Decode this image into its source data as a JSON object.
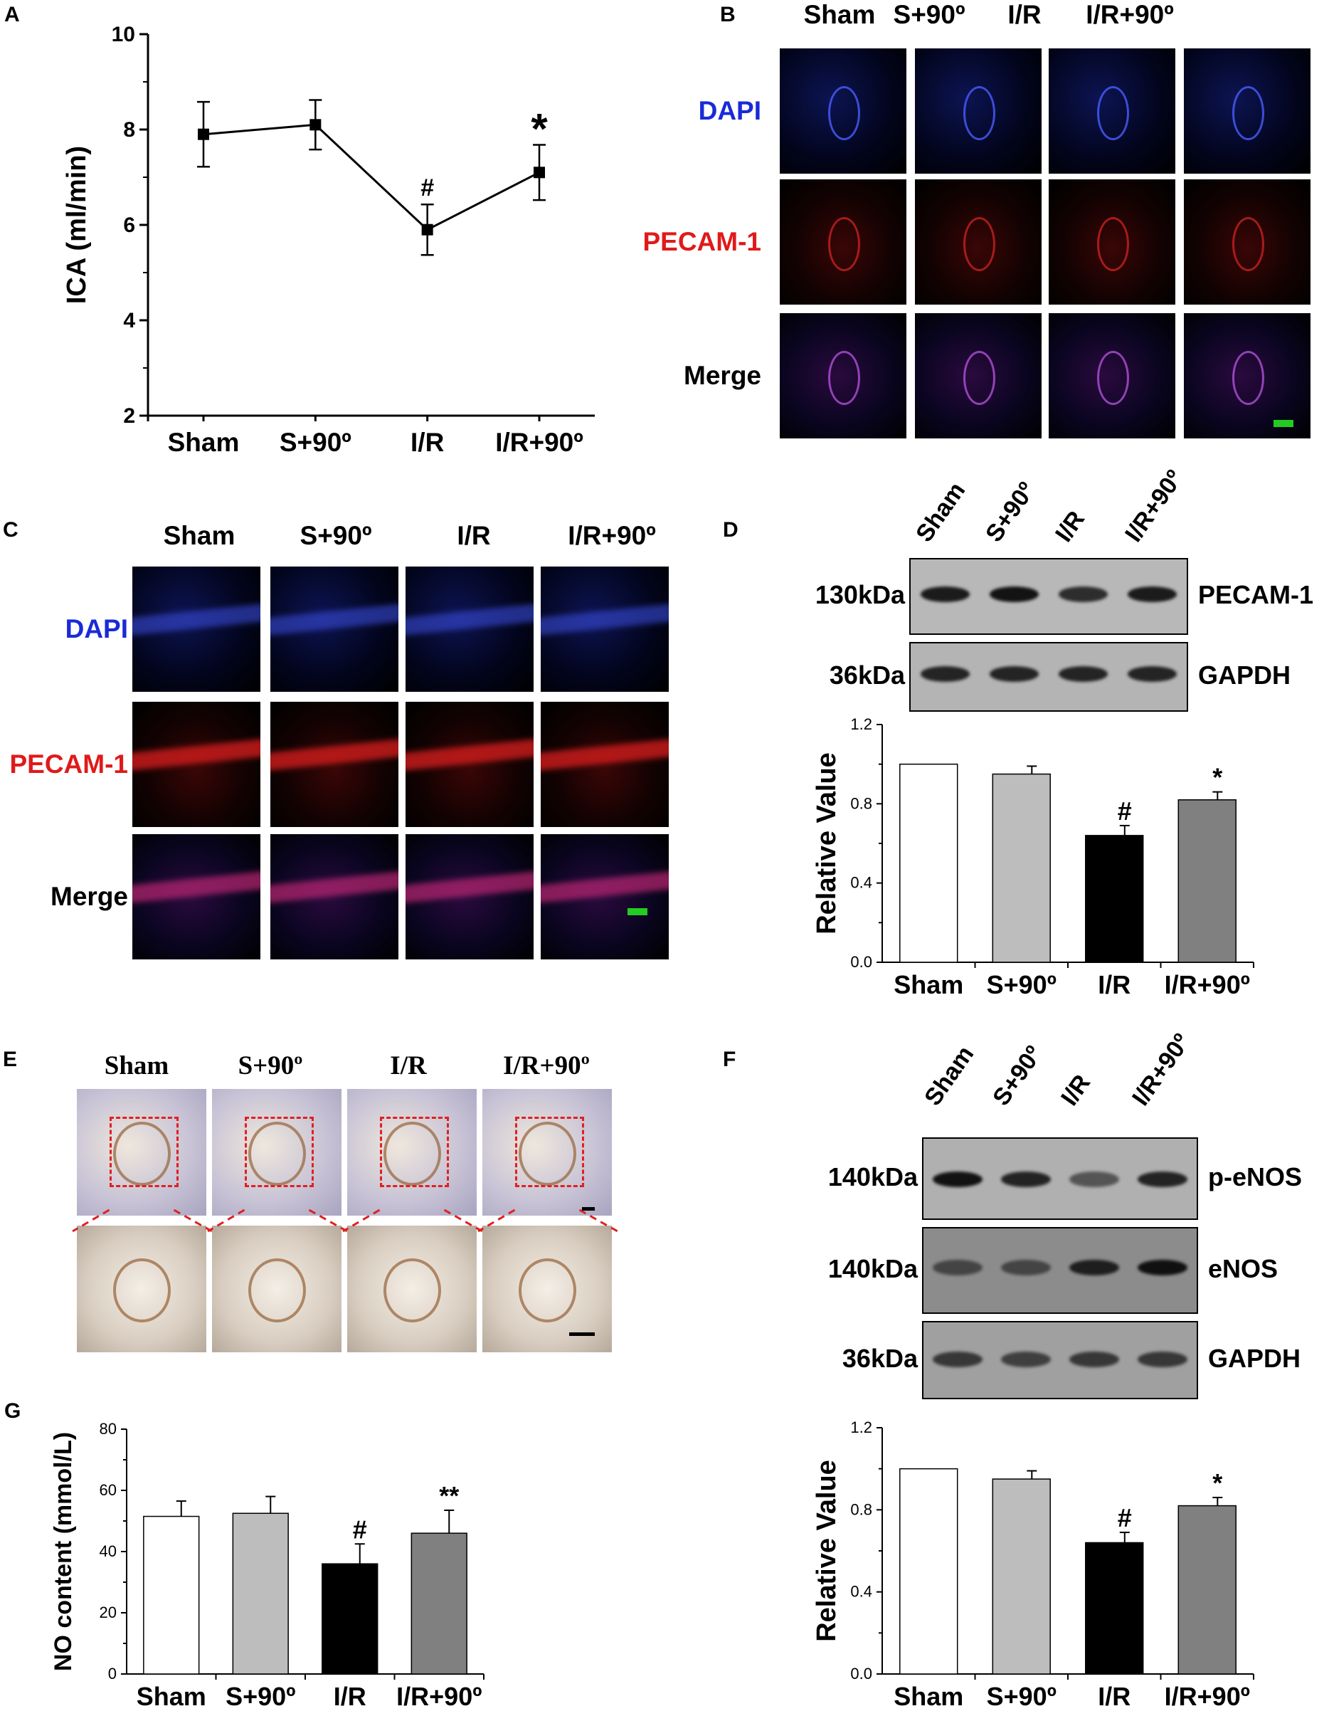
{
  "panels": {
    "A": {
      "letter": "A"
    },
    "B": {
      "letter": "B",
      "columns": [
        "Sham",
        "S+90º",
        "I/R",
        "I/R+90º"
      ],
      "rows": [
        "DAPI",
        "PECAM-1",
        "Merge"
      ]
    },
    "C": {
      "letter": "C",
      "columns": [
        "Sham",
        "S+90º",
        "I/R",
        "I/R+90º"
      ],
      "rows": [
        "DAPI",
        "PECAM-1",
        "Merge"
      ]
    },
    "D": {
      "letter": "D",
      "lanes": [
        "Sham",
        "S+90º",
        "I/R",
        "I/R+90º"
      ],
      "blots": [
        {
          "kda": "130kDa",
          "protein": "PECAM-1"
        },
        {
          "kda": "36kDa",
          "protein": "GAPDH"
        }
      ]
    },
    "E": {
      "letter": "E",
      "columns": [
        "Sham",
        "S+90º",
        "I/R",
        "I/R+90º"
      ]
    },
    "F": {
      "letter": "F",
      "lanes": [
        "Sham",
        "S+90º",
        "I/R",
        "I/R+90º"
      ],
      "blots": [
        {
          "kda": "140kDa",
          "protein": "p-eNOS"
        },
        {
          "kda": "140kDa",
          "protein": "eNOS"
        },
        {
          "kda": "36kDa",
          "protein": "GAPDH"
        }
      ]
    },
    "G": {
      "letter": "G"
    }
  },
  "chart_data": [
    {
      "id": "A",
      "type": "line",
      "categories": [
        "Sham",
        "S+90º",
        "I/R",
        "I/R+90º"
      ],
      "values": [
        7.9,
        8.1,
        5.9,
        7.1
      ],
      "errors": [
        0.68,
        0.52,
        0.53,
        0.58
      ],
      "annotations": [
        "",
        "",
        "#",
        "*"
      ],
      "ylabel": "ICA (ml/min)",
      "ylim": [
        2,
        10
      ],
      "yticks": [
        "2",
        "4",
        "6",
        "8",
        "10"
      ],
      "color": "#000000"
    },
    {
      "id": "D",
      "type": "bar",
      "categories": [
        "Sham",
        "S+90º",
        "I/R",
        "I/R+90º"
      ],
      "values": [
        1.0,
        0.95,
        0.64,
        0.82
      ],
      "errors": [
        0,
        0.04,
        0.05,
        0.04
      ],
      "annotations": [
        "",
        "",
        "#",
        "*"
      ],
      "ylabel": "Relative Value",
      "ylim": [
        0,
        1.2
      ],
      "yticks": [
        "0.0",
        "0.4",
        "0.8",
        "1.2"
      ],
      "colors": [
        "#ffffff",
        "#bdbdbd",
        "#000000",
        "#808080"
      ]
    },
    {
      "id": "G",
      "type": "bar",
      "categories": [
        "Sham",
        "S+90º",
        "I/R",
        "I/R+90º"
      ],
      "values": [
        51.5,
        52.5,
        36.0,
        46.0
      ],
      "errors": [
        5.0,
        5.5,
        6.5,
        7.5
      ],
      "annotations": [
        "",
        "",
        "#",
        "**"
      ],
      "ylabel": "NO content (mmol/L)",
      "ylim": [
        0,
        80
      ],
      "yticks": [
        "0",
        "20",
        "40",
        "60",
        "80"
      ],
      "colors": [
        "#ffffff",
        "#bdbdbd",
        "#000000",
        "#808080"
      ]
    },
    {
      "id": "F",
      "type": "bar",
      "categories": [
        "Sham",
        "S+90º",
        "I/R",
        "I/R+90º"
      ],
      "values": [
        1.0,
        0.95,
        0.64,
        0.82
      ],
      "errors": [
        0,
        0.04,
        0.05,
        0.04
      ],
      "annotations": [
        "",
        "",
        "#",
        "*"
      ],
      "ylabel": "Relative Value",
      "ylim": [
        0,
        1.2
      ],
      "yticks": [
        "0.0",
        "0.4",
        "0.8",
        "1.2"
      ],
      "colors": [
        "#ffffff",
        "#bdbdbd",
        "#000000",
        "#808080"
      ]
    }
  ]
}
